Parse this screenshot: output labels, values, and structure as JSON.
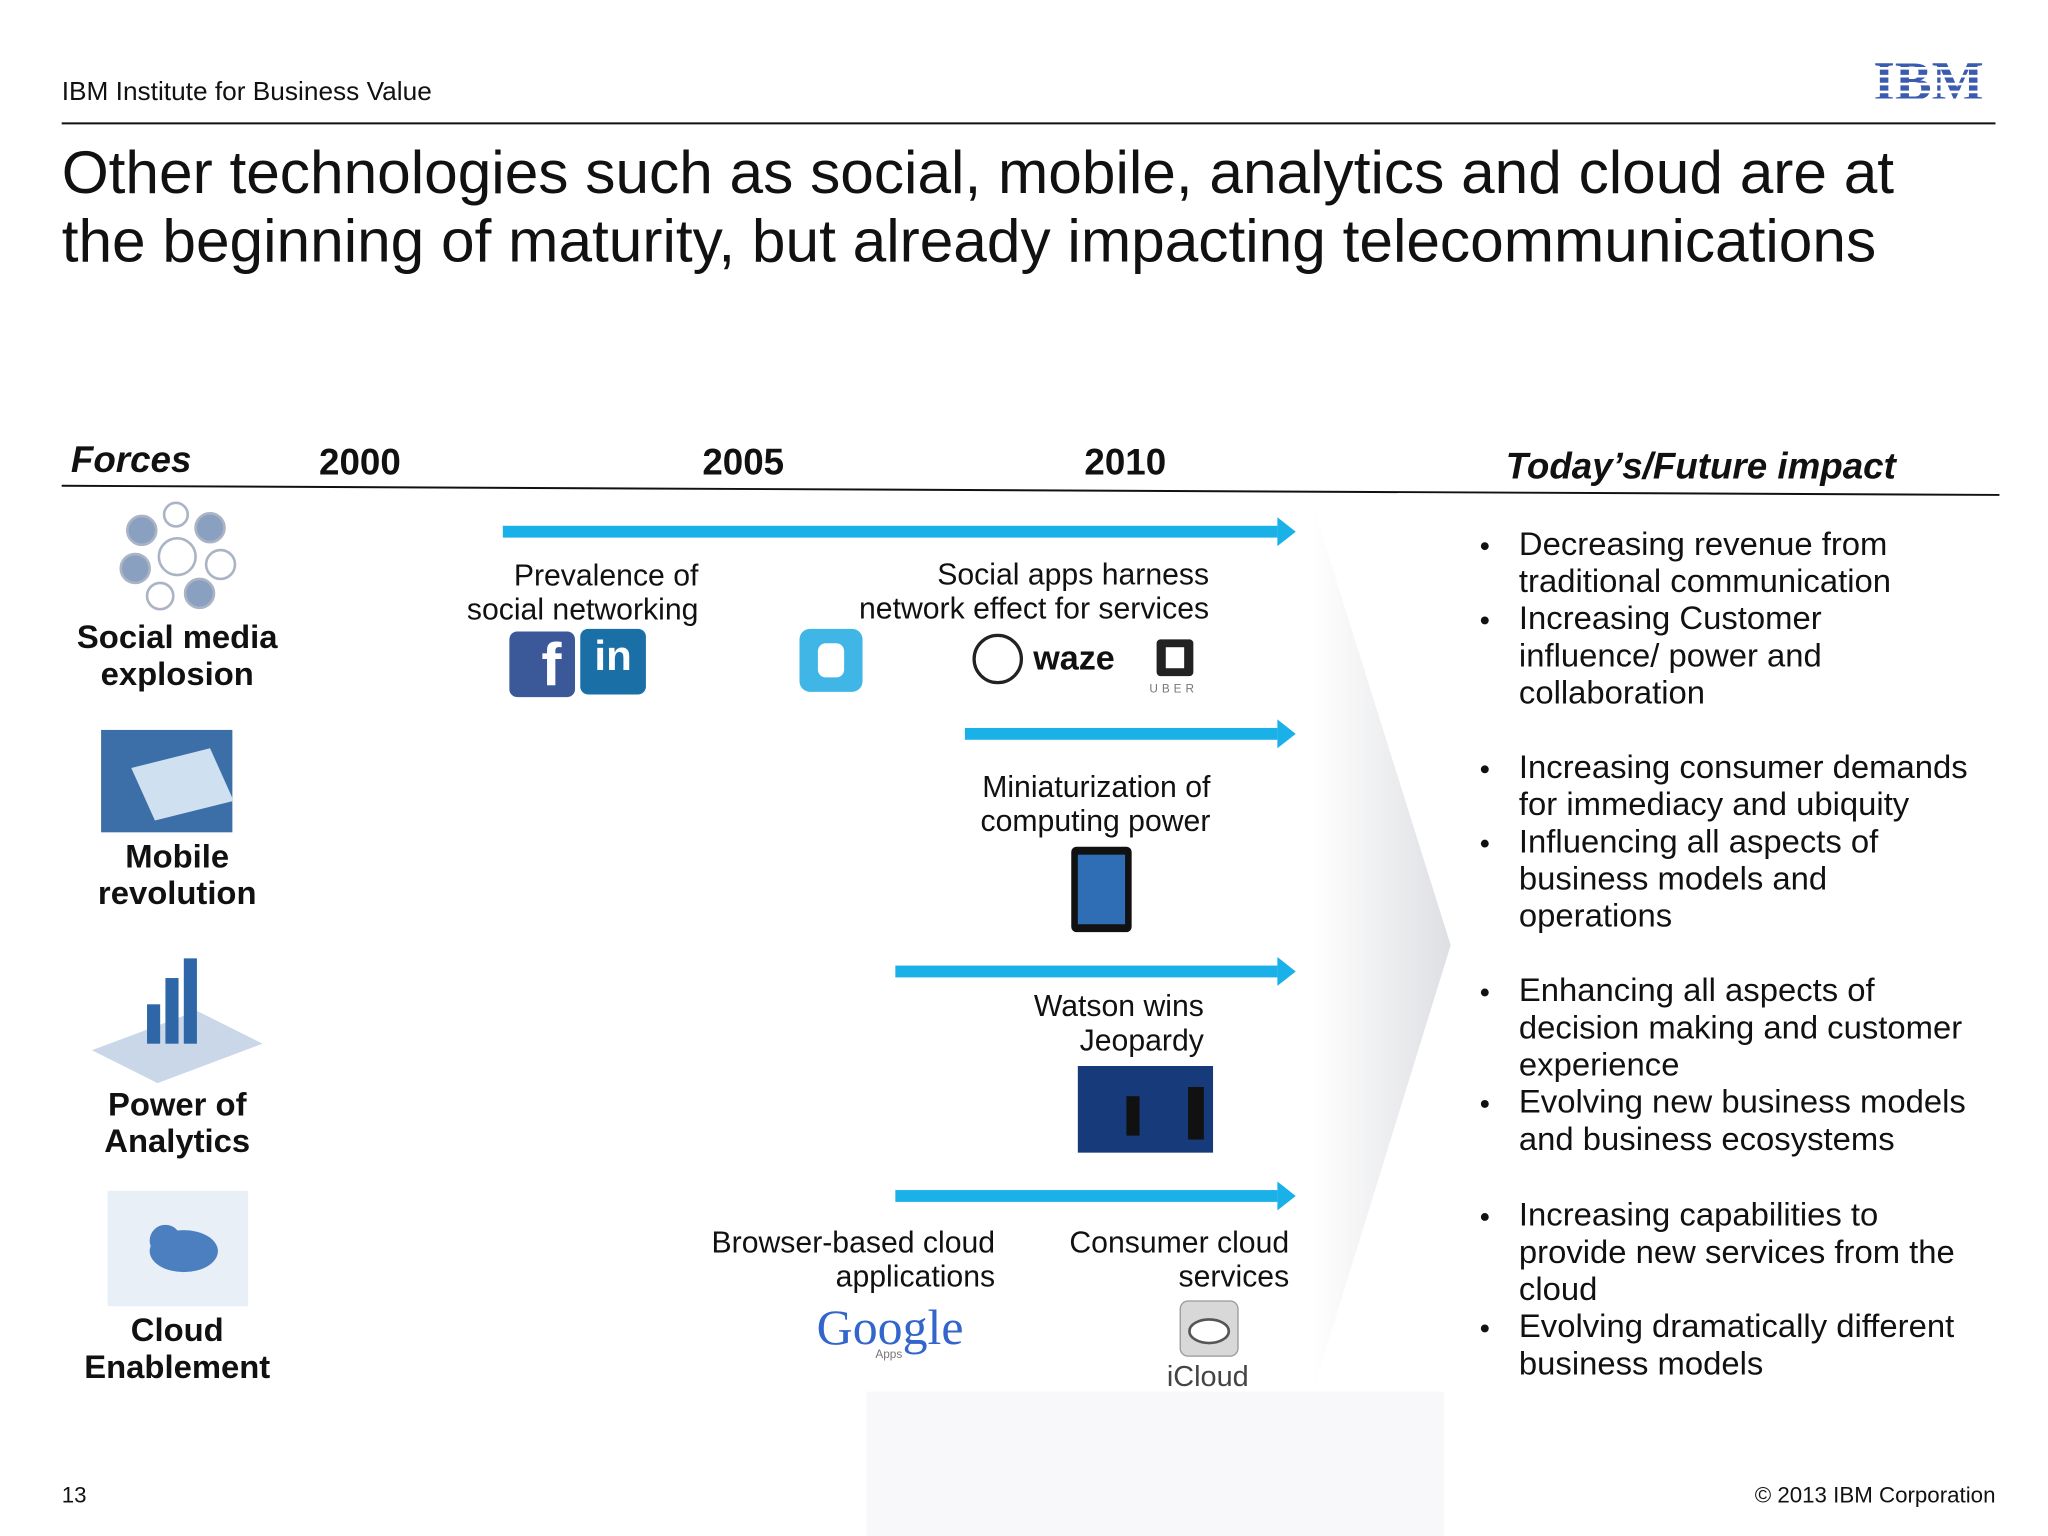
{
  "header": {
    "institute": "IBM Institute for Business Value",
    "logo": "IBM"
  },
  "title": [
    "Other technologies such as social, mobile, analytics and cloud are at",
    "the beginning of maturity, but already impacting telecommunications"
  ],
  "columns": {
    "forces": "Forces",
    "years": [
      "2000",
      "2005",
      "2010"
    ],
    "impact": "Today’s/Future impact"
  },
  "forces": [
    {
      "label": [
        "Social media",
        "explosion"
      ]
    },
    {
      "label": [
        "Mobile",
        "revolution"
      ]
    },
    {
      "label": [
        "Power of",
        "Analytics"
      ]
    },
    {
      "label": [
        "Cloud",
        "Enablement"
      ]
    }
  ],
  "events": [
    {
      "label": [
        "Prevalence of",
        "social networking"
      ]
    },
    {
      "label": [
        "Social apps harness",
        "network effect for services"
      ]
    },
    {
      "label": [
        "Miniaturization of",
        "computing power"
      ]
    },
    {
      "label": [
        "Watson wins",
        "Jeopardy"
      ]
    },
    {
      "label": [
        "Browser-based cloud",
        "applications"
      ]
    },
    {
      "label": [
        "Consumer cloud",
        "services"
      ]
    }
  ],
  "logos": {
    "linkedin": "in",
    "waze": "waze",
    "uber": "UBER",
    "google": "Google",
    "apps": "Apps",
    "icloud": "iCloud"
  },
  "impacts": [
    [
      [
        "Decreasing revenue from",
        "traditional communication"
      ],
      [
        "Increasing  Customer",
        "influence/ power and",
        "collaboration"
      ]
    ],
    [
      [
        "Increasing consumer demands",
        "for immediacy and ubiquity"
      ],
      [
        "Influencing all aspects of",
        "business  models and",
        "operations"
      ]
    ],
    [
      [
        "Enhancing all aspects of",
        "decision making  and customer",
        "experience"
      ],
      [
        "Evolving new business models",
        "and business ecosystems"
      ]
    ],
    [
      [
        "Increasing capabilities to",
        "provide new services from the",
        "cloud"
      ],
      [
        "Evolving dramatically different",
        "business models"
      ]
    ]
  ],
  "footer": {
    "page": "13",
    "copyright": "© 2013 IBM Corporation"
  }
}
